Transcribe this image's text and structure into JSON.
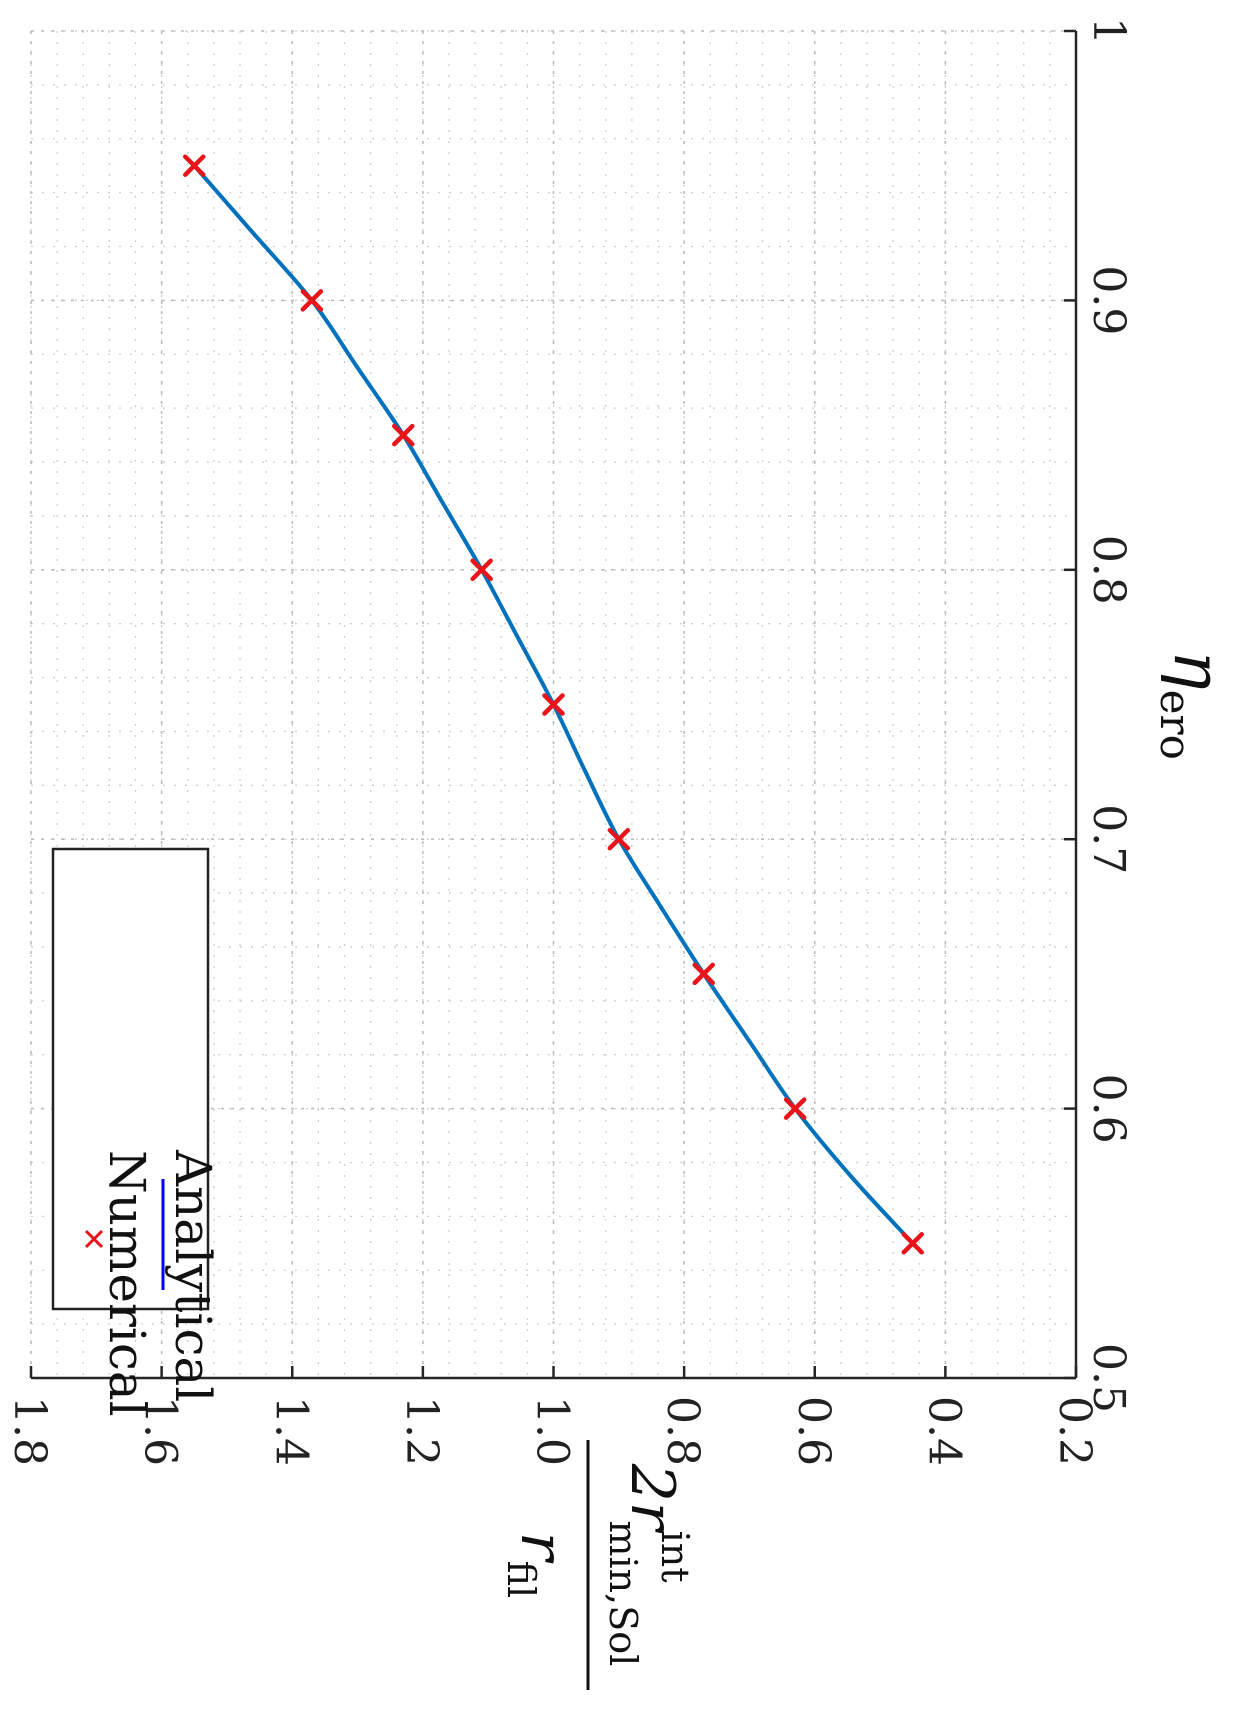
{
  "chart_data": {
    "type": "line",
    "orientation": "rotated-90-clockwise",
    "x_axis": {
      "symbol": "η",
      "subscript": "ero",
      "range": [
        0.5,
        1.0
      ],
      "ticks": [
        0.5,
        0.6,
        0.7,
        0.8,
        0.9,
        1.0
      ],
      "tick_labels": [
        "0.5",
        "0.6",
        "0.7",
        "0.8",
        "0.9",
        "1"
      ]
    },
    "y_axis": {
      "numerator": "2r",
      "numerator_superscript": "int",
      "numerator_subscript": "min,Sol",
      "denominator": "r",
      "denominator_subscript": "fil",
      "range": [
        0.2,
        1.8
      ],
      "ticks": [
        0.2,
        0.4,
        0.6,
        0.8,
        1.0,
        1.2,
        1.4,
        1.6,
        1.8
      ],
      "tick_labels": [
        "0.2",
        "0.4",
        "0.6",
        "0.8",
        "1.0",
        "1.2",
        "1.4",
        "1.6",
        "1.8"
      ]
    },
    "grid": true,
    "minor_grid": true,
    "legend": {
      "placement": "top-left",
      "entries": [
        "Numerical",
        "Analytical"
      ]
    },
    "series": [
      {
        "name": "Numerical",
        "marker": "x",
        "color": "#e8141a",
        "x": [
          0.55,
          0.6,
          0.65,
          0.7,
          0.75,
          0.8,
          0.85,
          0.9,
          0.95
        ],
        "y": [
          0.45,
          0.63,
          0.77,
          0.9,
          1.0,
          1.11,
          1.23,
          1.37,
          1.55
        ]
      },
      {
        "name": "Analytical",
        "line": "solid",
        "color": "#0072bd",
        "legend_color": "#0000ff",
        "x": [
          0.55,
          0.575,
          0.6,
          0.625,
          0.65,
          0.675,
          0.7,
          0.725,
          0.75,
          0.775,
          0.8,
          0.825,
          0.85,
          0.875,
          0.9,
          0.925,
          0.95
        ],
        "y": [
          0.45,
          0.545,
          0.63,
          0.7,
          0.77,
          0.836,
          0.9,
          0.951,
          1.0,
          1.055,
          1.11,
          1.17,
          1.23,
          1.3,
          1.37,
          1.46,
          1.55
        ]
      }
    ]
  }
}
